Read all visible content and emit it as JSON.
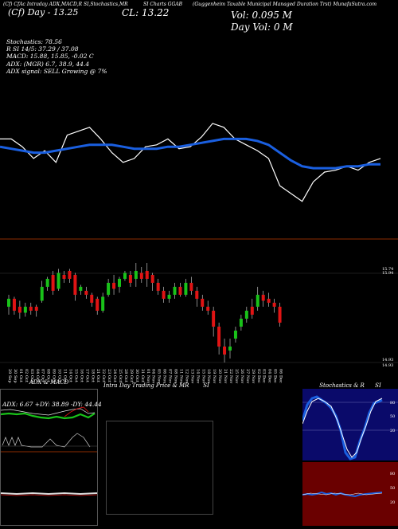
{
  "header": {
    "left_line1": "(Cf) CfAc Intraday ADX,MACD,R",
    "left_line2": "SI,Stochastics,MR",
    "center_line": "SI Charts GGAB",
    "right_line": "(Guggenheim Taxable Municipal Managed Duration Trst) MunafaSutra.com",
    "big_left": "(Cf) Day - 13.25",
    "big_mid": "CL: 13.22",
    "volume": "Vol: 0.095 M",
    "day_volume": "Day Vol: 0  M"
  },
  "stats": {
    "stochastics": "Stochastics: 78.56",
    "rsi": "R     SI 14/5: 37.29 / 37.08",
    "macd": "MACD: 15.88, 15.85, -0.02  C",
    "adx": "ADX:                         (MGR) 6.7, 38.9, 44.4",
    "adx_signal": "ADX  signal: SELL  Growing @ 7%"
  },
  "price_axis": {
    "upper_label_1": "15.74",
    "upper_label_2": "15.94",
    "lower_label_1": "14.93",
    "lower_label_2": "14.93"
  },
  "x_labels": [
    "29 Sep",
    "30 Sep",
    "01 Oct",
    "02 Oct",
    "03 Oct",
    "04 Oct",
    "07 Oct",
    "08 Oct",
    "09 Oct",
    "10 Oct",
    "11 Oct",
    "14 Oct",
    "15 Oct",
    "16 Oct",
    "17 Oct",
    "18 Oct",
    "21 Oct",
    "22 Oct",
    "23 Oct",
    "24 Oct",
    "25 Oct",
    "28 Oct",
    "29 Oct",
    "30 Oct",
    "31 Oct",
    "01 Nov",
    "04 Nov",
    "05 Nov",
    "06 Nov",
    "07 Nov",
    "08 Nov",
    "11 Nov",
    "12 Nov",
    "13 Nov",
    "14 Nov",
    "15 Nov",
    "18 Nov",
    "19 Nov",
    "20 Nov",
    "21 Nov",
    "22 Nov",
    "25 Nov",
    "26 Nov",
    "27 Nov",
    "29 Nov",
    "02 Dec",
    "03 Dec",
    "04 Dec",
    "05 Dec",
    "06 Dec"
  ],
  "panels": {
    "adx_title": "ADX  & MACD",
    "adx_values": "ADX: 6.67  +DY: 38.89 -DY: 44.44",
    "intraday_title": "Intra  Day Trading Price  & MR",
    "intraday_title_2": "SI",
    "stoch_title": "Stochastics & R",
    "stoch_title_2": "SI",
    "stoch_labels": [
      "80",
      "50",
      "20"
    ],
    "rsi_labels": [
      "80",
      "50",
      "20"
    ]
  },
  "chart_data": [
    {
      "type": "line",
      "title": "",
      "series": [
        {
          "name": "price",
          "color": "#ffffff",
          "values": [
            15.4,
            15.4,
            15.36,
            15.3,
            15.34,
            15.28,
            15.42,
            15.44,
            15.46,
            15.4,
            15.33,
            15.28,
            15.3,
            15.36,
            15.37,
            15.4,
            15.35,
            15.36,
            15.41,
            15.48,
            15.46,
            15.4,
            15.37,
            15.34,
            15.3,
            15.16,
            15.12,
            15.08,
            15.18,
            15.23,
            15.24,
            15.26,
            15.24,
            15.28,
            15.3
          ]
        },
        {
          "name": "moving_average",
          "color": "#1a5fe0",
          "values": [
            15.36,
            15.35,
            15.34,
            15.33,
            15.33,
            15.34,
            15.35,
            15.36,
            15.37,
            15.37,
            15.37,
            15.36,
            15.35,
            15.35,
            15.35,
            15.36,
            15.36,
            15.37,
            15.38,
            15.39,
            15.4,
            15.4,
            15.4,
            15.39,
            15.37,
            15.33,
            15.29,
            15.26,
            15.25,
            15.25,
            15.25,
            15.26,
            15.26,
            15.27,
            15.27
          ]
        }
      ]
    },
    {
      "type": "candlestick",
      "series": [
        {
          "name": "candles",
          "values": [
            {
              "o": 15.3,
              "c": 15.34,
              "h": 15.36,
              "l": 15.26
            },
            {
              "o": 15.34,
              "c": 15.28,
              "h": 15.35,
              "l": 15.26
            },
            {
              "o": 15.3,
              "c": 15.27,
              "h": 15.33,
              "l": 15.24
            },
            {
              "o": 15.27,
              "c": 15.3,
              "h": 15.32,
              "l": 15.25
            },
            {
              "o": 15.3,
              "c": 15.28,
              "h": 15.32,
              "l": 15.26
            },
            {
              "o": 15.3,
              "c": 15.28,
              "h": 15.31,
              "l": 15.25
            },
            {
              "o": 15.33,
              "c": 15.4,
              "h": 15.43,
              "l": 15.32
            },
            {
              "o": 15.4,
              "c": 15.44,
              "h": 15.45,
              "l": 15.38
            },
            {
              "o": 15.46,
              "c": 15.38,
              "h": 15.48,
              "l": 15.36
            },
            {
              "o": 15.39,
              "c": 15.47,
              "h": 15.49,
              "l": 15.38
            },
            {
              "o": 15.46,
              "c": 15.44,
              "h": 15.48,
              "l": 15.42
            },
            {
              "o": 15.48,
              "c": 15.44,
              "h": 15.49,
              "l": 15.42
            },
            {
              "o": 15.46,
              "c": 15.36,
              "h": 15.47,
              "l": 15.33
            },
            {
              "o": 15.38,
              "c": 15.4,
              "h": 15.41,
              "l": 15.36
            },
            {
              "o": 15.38,
              "c": 15.36,
              "h": 15.4,
              "l": 15.34
            },
            {
              "o": 15.36,
              "c": 15.32,
              "h": 15.37,
              "l": 15.3
            },
            {
              "o": 15.34,
              "c": 15.28,
              "h": 15.35,
              "l": 15.26
            },
            {
              "o": 15.28,
              "c": 15.35,
              "h": 15.37,
              "l": 15.27
            },
            {
              "o": 15.36,
              "c": 15.42,
              "h": 15.44,
              "l": 15.35
            },
            {
              "o": 15.42,
              "c": 15.39,
              "h": 15.46,
              "l": 15.36
            },
            {
              "o": 15.4,
              "c": 15.44,
              "h": 15.45,
              "l": 15.37
            },
            {
              "o": 15.44,
              "c": 15.47,
              "h": 15.48,
              "l": 15.43
            },
            {
              "o": 15.46,
              "c": 15.42,
              "h": 15.48,
              "l": 15.4
            },
            {
              "o": 15.44,
              "c": 15.48,
              "h": 15.52,
              "l": 15.4
            },
            {
              "o": 15.47,
              "c": 15.44,
              "h": 15.5,
              "l": 15.42
            },
            {
              "o": 15.48,
              "c": 15.44,
              "h": 15.52,
              "l": 15.4
            },
            {
              "o": 15.46,
              "c": 15.42,
              "h": 15.47,
              "l": 15.38
            },
            {
              "o": 15.42,
              "c": 15.38,
              "h": 15.44,
              "l": 15.36
            },
            {
              "o": 15.38,
              "c": 15.34,
              "h": 15.4,
              "l": 15.32
            },
            {
              "o": 15.34,
              "c": 15.36,
              "h": 15.38,
              "l": 15.32
            },
            {
              "o": 15.36,
              "c": 15.4,
              "h": 15.42,
              "l": 15.34
            },
            {
              "o": 15.4,
              "c": 15.36,
              "h": 15.42,
              "l": 15.35
            },
            {
              "o": 15.36,
              "c": 15.42,
              "h": 15.44,
              "l": 15.35
            },
            {
              "o": 15.42,
              "c": 15.38,
              "h": 15.45,
              "l": 15.36
            },
            {
              "o": 15.38,
              "c": 15.34,
              "h": 15.4,
              "l": 15.3
            },
            {
              "o": 15.34,
              "c": 15.3,
              "h": 15.36,
              "l": 15.28
            },
            {
              "o": 15.3,
              "c": 15.28,
              "h": 15.33,
              "l": 15.26
            },
            {
              "o": 15.28,
              "c": 15.2,
              "h": 15.3,
              "l": 15.15
            },
            {
              "o": 15.2,
              "c": 15.1,
              "h": 15.22,
              "l": 15.06
            },
            {
              "o": 15.1,
              "c": 15.06,
              "h": 15.14,
              "l": 15.02
            },
            {
              "o": 15.08,
              "c": 15.1,
              "h": 15.14,
              "l": 15.04
            },
            {
              "o": 15.14,
              "c": 15.18,
              "h": 15.2,
              "l": 15.12
            },
            {
              "o": 15.2,
              "c": 15.24,
              "h": 15.26,
              "l": 15.18
            },
            {
              "o": 15.24,
              "c": 15.28,
              "h": 15.3,
              "l": 15.22
            },
            {
              "o": 15.3,
              "c": 15.26,
              "h": 15.34,
              "l": 15.24
            },
            {
              "o": 15.3,
              "c": 15.36,
              "h": 15.4,
              "l": 15.28
            },
            {
              "o": 15.36,
              "c": 15.33,
              "h": 15.38,
              "l": 15.3
            },
            {
              "o": 15.34,
              "c": 15.32,
              "h": 15.37,
              "l": 15.3
            },
            {
              "o": 15.32,
              "c": 15.3,
              "h": 15.34,
              "l": 15.27
            },
            {
              "o": 15.3,
              "c": 15.22,
              "h": 15.32,
              "l": 15.2
            }
          ]
        }
      ]
    }
  ],
  "colors": {
    "bull": "#19c219",
    "bear": "#e01414",
    "ma": "#1a5fe0",
    "divider": "#8b2c00",
    "stoch_bg": "#0a0a6a",
    "rsi_bg": "#6a0000"
  }
}
